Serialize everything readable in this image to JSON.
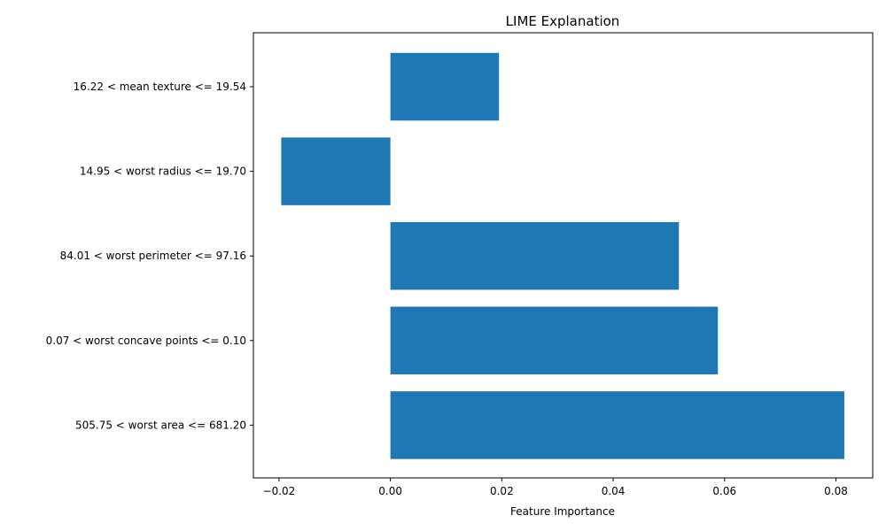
{
  "chart_data": {
    "type": "bar",
    "orientation": "horizontal",
    "title": "LIME Explanation",
    "xlabel": "Feature Importance",
    "ylabel": "",
    "categories": [
      "16.22 < mean texture <= 19.54",
      "14.95 < worst radius <= 19.70",
      "84.01 < worst perimeter <= 97.16",
      "0.07 < worst concave points <= 0.10",
      "505.75 < worst area <= 681.20"
    ],
    "values": [
      0.0195,
      -0.0196,
      0.0518,
      0.0588,
      0.0815
    ],
    "xlim": [
      -0.0246,
      0.0866
    ],
    "xticks": [
      -0.02,
      0.0,
      0.02,
      0.04,
      0.06,
      0.08
    ],
    "xtick_labels": [
      "−0.02",
      "0.00",
      "0.02",
      "0.04",
      "0.06",
      "0.08"
    ],
    "bar_color": "#1f77b4",
    "grid": false
  }
}
